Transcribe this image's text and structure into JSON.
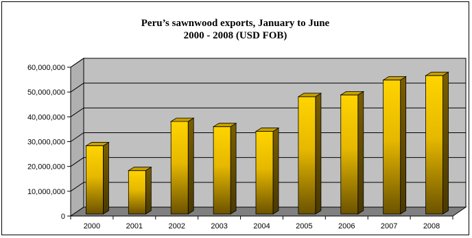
{
  "chart_data": {
    "type": "bar",
    "title_line1": "Peru’s sawnwood exports, January to June",
    "title_line2": "2000 - 2008 (USD FOB)",
    "categories": [
      "2000",
      "2001",
      "2002",
      "2003",
      "2004",
      "2005",
      "2006",
      "2007",
      "2008"
    ],
    "values": [
      27500000,
      17500000,
      37300000,
      35200000,
      33300000,
      47300000,
      48000000,
      54000000,
      55800000
    ],
    "ylim": [
      0,
      60000000
    ],
    "yticks": [
      "0",
      "10,000,000",
      "20,000,000",
      "30,000,000",
      "40,000,000",
      "50,000,000",
      "60,000,000"
    ],
    "grid": true,
    "legend": "none",
    "colors": {
      "bar_top": "#ffd400",
      "bar_bottom": "#6b5200",
      "side": "#4a3900",
      "cap": "#c8a000",
      "wall": "#c0c0c0",
      "floor": "#808080"
    }
  }
}
